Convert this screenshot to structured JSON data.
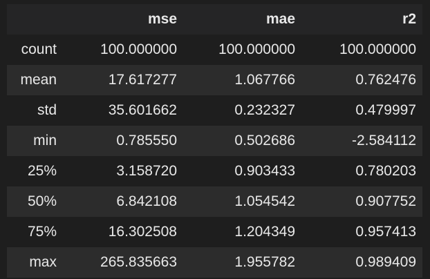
{
  "table": {
    "columns": [
      "",
      "mse",
      "mae",
      "r2"
    ],
    "rows": [
      {
        "label": "count",
        "mse": "100.000000",
        "mae": "100.000000",
        "r2": "100.000000"
      },
      {
        "label": "mean",
        "mse": "17.617277",
        "mae": "1.067766",
        "r2": "0.762476"
      },
      {
        "label": "std",
        "mse": "35.601662",
        "mae": "0.232327",
        "r2": "0.479997"
      },
      {
        "label": "min",
        "mse": "0.785550",
        "mae": "0.502686",
        "r2": "-2.584112"
      },
      {
        "label": "25%",
        "mse": "3.158720",
        "mae": "0.903433",
        "r2": "0.780203"
      },
      {
        "label": "50%",
        "mse": "6.842108",
        "mae": "1.054542",
        "r2": "0.907752"
      },
      {
        "label": "75%",
        "mse": "16.302508",
        "mae": "1.204349",
        "r2": "0.957413"
      },
      {
        "label": "max",
        "mse": "265.835663",
        "mae": "1.955782",
        "r2": "0.989409"
      }
    ]
  },
  "colors": {
    "background": "#1e1e1e",
    "row_alt": "#2c2c2c",
    "text": "#e8e8e8"
  }
}
